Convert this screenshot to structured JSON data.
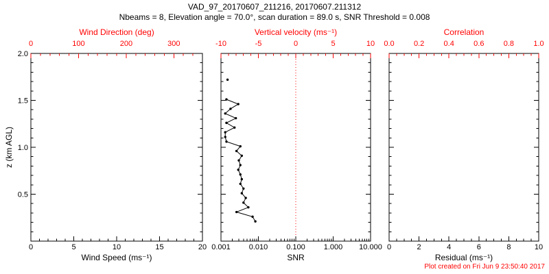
{
  "header": {
    "title": "VAD_97_20170607_211216, 20170607.211312",
    "subtitle": "Nbeams = 8, Elevation angle = 70.0°, scan duration = 89.0 s, SNR Threshold = 0.008"
  },
  "footer": {
    "created": "Plot created on Fri Jun  9 23:50:40 2017"
  },
  "colors": {
    "axis": "#000000",
    "secondary": "#ff0000",
    "background": "#ffffff"
  },
  "y_axis": {
    "label": "z (km AGL)",
    "lim": [
      0,
      2
    ],
    "tick_values": [
      0.5,
      1.0,
      1.5,
      2.0
    ],
    "tick_labels": [
      "0.5",
      "1.0",
      "1.5",
      "2.0"
    ],
    "minor_step": 0.1
  },
  "chart_data": [
    {
      "type": "line",
      "panel": "wind",
      "title_bottom": "Wind Speed (ms⁻¹)",
      "xlim": [
        0,
        20
      ],
      "xticks": [
        0,
        5,
        10,
        15,
        20
      ],
      "xtick_labels": [
        "0",
        "5",
        "10",
        "15",
        "20"
      ],
      "xminor": 1,
      "top_label": "Wind Direction (deg)",
      "top_xlim": [
        0,
        360
      ],
      "top_ticks": [
        0,
        100,
        200,
        300
      ],
      "top_tick_labels": [
        "0",
        "100",
        "200",
        "300"
      ],
      "top_minor": 20,
      "ylim": [
        0,
        2
      ],
      "series": []
    },
    {
      "type": "line",
      "panel": "snr",
      "title_bottom": "SNR",
      "xscale": "log",
      "xlim": [
        0.001,
        10
      ],
      "xticks": [
        0.001,
        0.01,
        0.1,
        1,
        10
      ],
      "xtick_labels": [
        "0.001",
        "0.010",
        "0.100",
        "1.000",
        "10.000"
      ],
      "top_label": "Vertical velocity (ms⁻¹)",
      "top_xlim": [
        -10,
        10
      ],
      "top_ticks": [
        -10,
        -5,
        0,
        5,
        10
      ],
      "top_tick_labels": [
        "-10",
        "-5",
        "0",
        "5",
        "10"
      ],
      "top_minor": 1,
      "zero_line_top_value": 0,
      "ylim": [
        0,
        2
      ],
      "profile": {
        "z": [
          1.51,
          1.46,
          1.41,
          1.36,
          1.31,
          1.26,
          1.21,
          1.16,
          1.11,
          1.06,
          1.01,
          0.96,
          0.91,
          0.86,
          0.81,
          0.76,
          0.71,
          0.66,
          0.61,
          0.56,
          0.51,
          0.46,
          0.41,
          0.36,
          0.31,
          0.26,
          0.21
        ],
        "snr": [
          0.0014,
          0.0029,
          0.0018,
          0.0013,
          0.0025,
          0.0014,
          0.0023,
          0.0013,
          0.0013,
          0.0014,
          0.0033,
          0.0026,
          0.0036,
          0.003,
          0.0033,
          0.0029,
          0.0033,
          0.0036,
          0.0033,
          0.004,
          0.0036,
          0.0046,
          0.004,
          0.0054,
          0.0026,
          0.007,
          0.0083
        ]
      },
      "isolated_point": {
        "z": 1.72,
        "snr": 0.0015
      }
    },
    {
      "type": "line",
      "panel": "residual",
      "title_bottom": "Residual (ms⁻¹)",
      "xlim": [
        0,
        10
      ],
      "xticks": [
        0,
        2,
        4,
        6,
        8,
        10
      ],
      "xtick_labels": [
        "0",
        "2",
        "4",
        "6",
        "8",
        "10"
      ],
      "xminor": 0.5,
      "top_label": "Correlation",
      "top_xlim": [
        0,
        1
      ],
      "top_ticks": [
        0,
        0.2,
        0.4,
        0.6,
        0.8,
        1
      ],
      "top_tick_labels": [
        "0.0",
        "0.2",
        "0.4",
        "0.6",
        "0.8",
        "1.0"
      ],
      "top_minor": 0.05,
      "ylim": [
        0,
        2
      ],
      "series": []
    }
  ]
}
